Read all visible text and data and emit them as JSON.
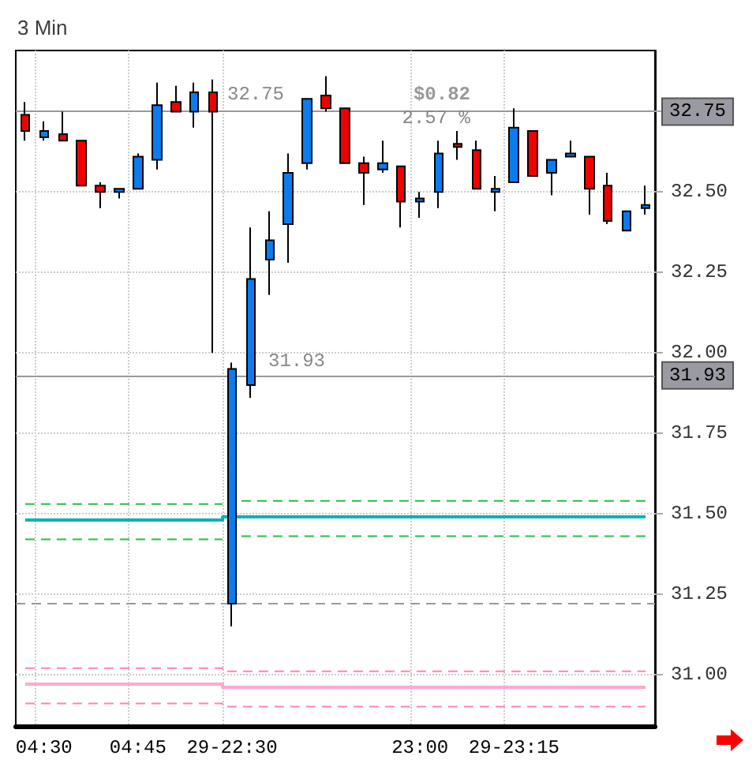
{
  "chart_data": {
    "type": "candlestick",
    "title": "3 Min",
    "categories": [
      null,
      "04:30",
      null,
      null,
      null,
      null,
      "04:45",
      null,
      null,
      null,
      null,
      "29-22:30",
      null,
      null,
      null,
      null,
      null,
      null,
      null,
      null,
      null,
      "23:00",
      null,
      null,
      null,
      null,
      "29-23:15",
      null,
      null,
      null,
      null,
      null,
      null,
      null
    ],
    "ohlc": [
      [
        32.74,
        32.78,
        32.66,
        32.69
      ],
      [
        32.67,
        32.72,
        32.66,
        32.69
      ],
      [
        32.68,
        32.75,
        32.66,
        32.66
      ],
      [
        32.66,
        32.66,
        32.52,
        32.52
      ],
      [
        32.52,
        32.53,
        32.45,
        32.5
      ],
      [
        32.5,
        32.51,
        32.48,
        32.51
      ],
      [
        32.51,
        32.62,
        32.51,
        32.61
      ],
      [
        32.6,
        32.84,
        32.57,
        32.77
      ],
      [
        32.78,
        32.83,
        32.75,
        32.75
      ],
      [
        32.75,
        32.84,
        32.7,
        32.81
      ],
      [
        32.81,
        32.85,
        32.0,
        32.75
      ],
      [
        31.22,
        31.97,
        31.15,
        31.95
      ],
      [
        31.9,
        32.39,
        31.86,
        32.23
      ],
      [
        32.29,
        32.44,
        32.18,
        32.35
      ],
      [
        32.4,
        32.62,
        32.28,
        32.56
      ],
      [
        32.59,
        32.79,
        32.57,
        32.79
      ],
      [
        32.8,
        32.86,
        32.75,
        32.76
      ],
      [
        32.76,
        32.76,
        32.59,
        32.59
      ],
      [
        32.59,
        32.61,
        32.46,
        32.56
      ],
      [
        32.57,
        32.66,
        32.56,
        32.59
      ],
      [
        32.58,
        32.58,
        32.39,
        32.47
      ],
      [
        32.47,
        32.5,
        32.42,
        32.48
      ],
      [
        32.5,
        32.66,
        32.45,
        32.62
      ],
      [
        32.65,
        32.69,
        32.6,
        32.64
      ],
      [
        32.63,
        32.66,
        32.51,
        32.51
      ],
      [
        32.5,
        32.55,
        32.44,
        32.51
      ],
      [
        32.53,
        32.76,
        32.53,
        32.7
      ],
      [
        32.69,
        32.69,
        32.55,
        32.55
      ],
      [
        32.56,
        32.6,
        32.49,
        32.6
      ],
      [
        32.61,
        32.66,
        32.61,
        32.62
      ],
      [
        32.61,
        32.61,
        32.43,
        32.51
      ],
      [
        32.52,
        32.56,
        32.4,
        32.41
      ],
      [
        32.38,
        32.44,
        32.38,
        32.44
      ],
      [
        32.45,
        32.52,
        32.43,
        32.46
      ]
    ],
    "colors": [
      "#f00000",
      "#0a7cf0",
      "#f00000",
      "#f00000",
      "#f00000",
      "#0a7cf0",
      "#0a7cf0",
      "#0a7cf0",
      "#f00000",
      "#0a7cf0",
      "#f00000",
      "#0a7cf0",
      "#0a7cf0",
      "#0a7cf0",
      "#0a7cf0",
      "#0a7cf0",
      "#f00000",
      "#f00000",
      "#f00000",
      "#0a7cf0",
      "#f00000",
      "#0a7cf0",
      "#0a7cf0",
      "#f00000",
      "#f00000",
      "#0a7cf0",
      "#0a7cf0",
      "#f00000",
      "#0a7cf0",
      "#0a7cf0",
      "#f00000",
      "#f00000",
      "#0a7cf0",
      "#0a7cf0"
    ],
    "series": [
      {
        "type": "step",
        "color": "#00b4b4",
        "line_style": "solid",
        "values": [
          31.48,
          31.48,
          31.48,
          31.48,
          31.48,
          31.48,
          31.48,
          31.48,
          31.48,
          31.48,
          31.48,
          31.49,
          31.49,
          31.49,
          31.49,
          31.49,
          31.49,
          31.49,
          31.49,
          31.49,
          31.49,
          31.49,
          31.49,
          31.49,
          31.49,
          31.49,
          31.49,
          31.49,
          31.49,
          31.49,
          31.49,
          31.49,
          31.49,
          31.49
        ]
      },
      {
        "type": "step",
        "color": "#22c040",
        "line_style": "dashed",
        "values": [
          31.53,
          31.53,
          31.53,
          31.53,
          31.53,
          31.53,
          31.53,
          31.53,
          31.53,
          31.53,
          31.53,
          null,
          31.54,
          31.54,
          31.54,
          31.54,
          31.54,
          31.54,
          31.54,
          31.54,
          31.54,
          31.54,
          31.54,
          31.54,
          31.54,
          31.54,
          31.54,
          31.54,
          31.54,
          31.54,
          31.54,
          31.54,
          31.54,
          31.54
        ]
      },
      {
        "type": "step",
        "color": "#22c040",
        "line_style": "dashed",
        "values": [
          31.42,
          31.42,
          31.42,
          31.42,
          31.42,
          31.42,
          31.42,
          31.42,
          31.42,
          31.42,
          31.42,
          null,
          31.43,
          31.43,
          31.43,
          31.43,
          31.43,
          31.43,
          31.43,
          31.43,
          31.43,
          31.43,
          31.43,
          31.43,
          31.43,
          31.43,
          31.43,
          31.43,
          31.43,
          31.43,
          31.43,
          31.43,
          31.43,
          31.43
        ]
      },
      {
        "type": "step",
        "color": "#ffa8d4",
        "line_style": "solid",
        "values": [
          30.97,
          30.97,
          30.97,
          30.97,
          30.97,
          30.97,
          30.97,
          30.97,
          30.97,
          30.97,
          30.97,
          30.96,
          30.96,
          30.96,
          30.96,
          30.96,
          30.96,
          30.96,
          30.96,
          30.96,
          30.96,
          30.96,
          30.96,
          30.96,
          30.96,
          30.96,
          30.96,
          30.96,
          30.96,
          30.96,
          30.96,
          30.96,
          30.96,
          30.96
        ]
      },
      {
        "type": "step",
        "color": "#ff80c0",
        "line_style": "dashed",
        "values": [
          31.02,
          31.02,
          31.02,
          31.02,
          31.02,
          31.02,
          31.02,
          31.02,
          31.02,
          31.02,
          31.02,
          31.01,
          31.01,
          31.01,
          31.01,
          31.01,
          31.01,
          31.01,
          31.01,
          31.01,
          31.01,
          31.01,
          31.01,
          31.01,
          31.01,
          31.01,
          31.01,
          31.01,
          31.01,
          31.01,
          31.01,
          31.01,
          31.01,
          31.01
        ]
      },
      {
        "type": "step",
        "color": "#ff80c0",
        "line_style": "dashed",
        "values": [
          30.91,
          30.91,
          30.91,
          30.91,
          30.91,
          30.91,
          30.91,
          30.91,
          30.91,
          30.91,
          30.91,
          30.9,
          30.9,
          30.9,
          30.9,
          30.9,
          30.9,
          30.9,
          30.9,
          30.9,
          30.9,
          30.9,
          30.9,
          30.9,
          30.9,
          30.9,
          30.9,
          30.9,
          30.9,
          30.9,
          30.9,
          30.9,
          30.9,
          30.9
        ]
      }
    ],
    "ref_lines": [
      {
        "axis": "y",
        "value": 32.75,
        "label": "32.75",
        "color": "#999999",
        "line_style": "solid"
      },
      {
        "axis": "y",
        "value": 31.93,
        "label": "31.93",
        "color": "#999999",
        "line_style": "solid"
      },
      {
        "axis": "y",
        "value": 31.22,
        "color": "#999999",
        "line_style": "dashed"
      }
    ],
    "annotations": [
      "$0.82",
      "2.57 %",
      "32.75",
      "31.93"
    ],
    "ylim": [
      30.84,
      32.94
    ],
    "yticks": [
      {
        "value": 31,
        "label": "31.00"
      },
      {
        "value": 31.25,
        "label": "31.25"
      },
      {
        "value": 31.5,
        "label": "31.50"
      },
      {
        "value": 31.75,
        "label": "31.75"
      },
      {
        "value": 32,
        "label": "32.00"
      },
      {
        "value": 32.25,
        "label": "32.25"
      },
      {
        "value": 32.5,
        "label": "32.50"
      },
      {
        "value": 32.75,
        "label": "32.75"
      }
    ],
    "grid": true
  }
}
